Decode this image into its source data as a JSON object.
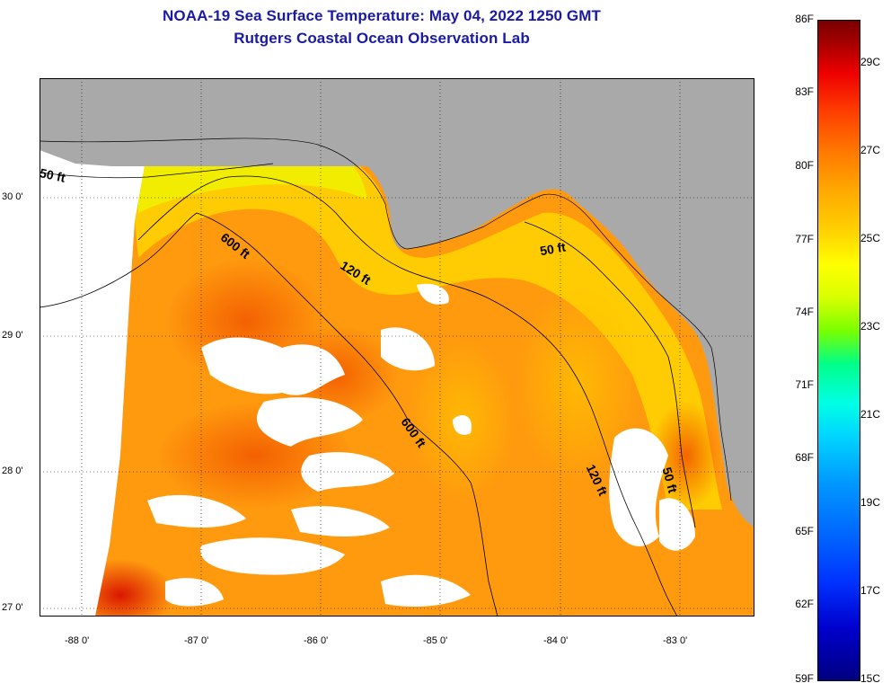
{
  "title": {
    "line1": "NOAA-19 Sea Surface Temperature:  May 04, 2022 1250 GMT",
    "line2": "Rutgers Coastal Ocean Observation Lab"
  },
  "map": {
    "lat_labels": [
      "30 0'",
      "29 0'",
      "28 0'",
      "27 0'"
    ],
    "lon_labels": [
      "-88 0'",
      "-87 0'",
      "-86 0'",
      "-85 0'",
      "-84 0'",
      "-83 0'"
    ],
    "contour_labels": {
      "fifty_west": "50 ft",
      "six_hundred_north": "600 ft",
      "one_twenty_north": "120 ft",
      "fifty_east": "50 ft",
      "six_hundred_south": "600 ft",
      "one_twenty_south": "120 ft",
      "fifty_south": "50 ft"
    },
    "colors": {
      "land": "#a9a9a9",
      "cloud": "#ffffff",
      "sst_warm": "#ff8c00",
      "sst_shelf": "#ffd000"
    }
  },
  "colorbar": {
    "fahrenheit": [
      "86F",
      "83F",
      "80F",
      "77F",
      "74F",
      "71F",
      "68F",
      "65F",
      "62F",
      "59F"
    ],
    "celsius": [
      "29C",
      "27C",
      "25C",
      "23C",
      "21C",
      "19C",
      "17C",
      "15C"
    ]
  }
}
